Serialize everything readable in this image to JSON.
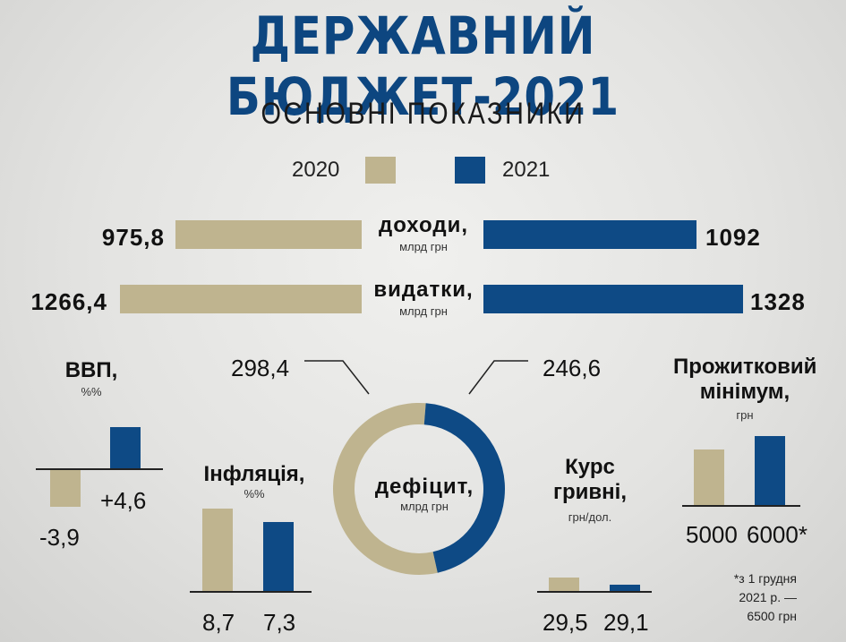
{
  "title": "ДЕРЖАВНИЙ БЮДЖЕТ-2021",
  "subtitle": "ОСНОВНІ ПОКАЗНИКИ",
  "legend": {
    "y2020": "2020",
    "y2021": "2021"
  },
  "colors": {
    "y2020": "#bfb48f",
    "y2021": "#0e4a85",
    "title": "#0d4680"
  },
  "income": {
    "label": "доходи,",
    "unit": "млрд грн",
    "v2020": "975,8",
    "v2021": "1092"
  },
  "expenses": {
    "label": "видатки,",
    "unit": "млрд грн",
    "v2020": "1266,4",
    "v2021": "1328"
  },
  "gdp": {
    "label": "ВВП,",
    "unit": "%%",
    "v2020": "-3,9",
    "v2021": "+4,6"
  },
  "inflation": {
    "label": "Інфляція,",
    "unit": "%%",
    "v2020": "8,7",
    "v2021": "7,3"
  },
  "deficit": {
    "label": "дефіцит,",
    "unit": "млрд грн",
    "v2020": "298,4",
    "v2021": "246,6"
  },
  "exchange": {
    "label1": "Курс",
    "label2": "гривні,",
    "unit": "грн/дол.",
    "v2020": "29,5",
    "v2021": "29,1"
  },
  "minimum": {
    "label1": "Прожитковий",
    "label2": "мінімум,",
    "unit": "грн",
    "v2020": "5000",
    "v2021": "6000*"
  },
  "footnote": {
    "line1": "*з 1 грудня",
    "line2": "2021 р. —",
    "line3": "6500 грн"
  },
  "chart_data": [
    {
      "type": "bar",
      "title": "доходи, млрд грн",
      "categories": [
        "2020",
        "2021"
      ],
      "values": [
        975.8,
        1092
      ]
    },
    {
      "type": "bar",
      "title": "видатки, млрд грн",
      "categories": [
        "2020",
        "2021"
      ],
      "values": [
        1266.4,
        1328
      ]
    },
    {
      "type": "bar",
      "title": "ВВП, %%",
      "categories": [
        "2020",
        "2021"
      ],
      "values": [
        -3.9,
        4.6
      ]
    },
    {
      "type": "bar",
      "title": "Інфляція, %%",
      "categories": [
        "2020",
        "2021"
      ],
      "values": [
        8.7,
        7.3
      ]
    },
    {
      "type": "pie",
      "title": "дефіцит, млрд грн",
      "categories": [
        "2020",
        "2021"
      ],
      "values": [
        298.4,
        246.6
      ]
    },
    {
      "type": "bar",
      "title": "Курс гривні, грн/дол.",
      "categories": [
        "2020",
        "2021"
      ],
      "values": [
        29.5,
        29.1
      ]
    },
    {
      "type": "bar",
      "title": "Прожитковий мінімум, грн",
      "categories": [
        "2020",
        "2021"
      ],
      "values": [
        5000,
        6000
      ]
    }
  ]
}
